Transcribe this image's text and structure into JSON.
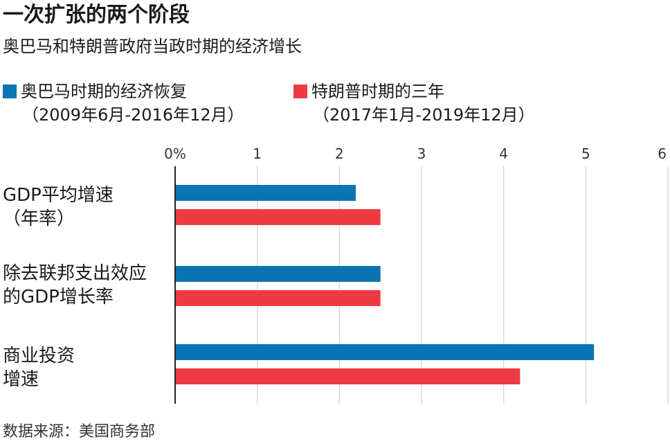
{
  "chart_data": {
    "type": "bar",
    "orientation": "horizontal",
    "title": "一次扩张的两个阶段",
    "subtitle": "奥巴马和特朗普政府当政时期的经济增长",
    "categories": [
      [
        "GDP平均增速",
        "（年率）"
      ],
      [
        "除去联邦支出效应",
        "的GDP增长率"
      ],
      [
        "商业投资",
        "增速"
      ]
    ],
    "series": [
      {
        "name": [
          "奥巴马时期的经济恢复",
          "（2009年6月-2016年12月）"
        ],
        "color": "#0a75b3",
        "values": [
          2.2,
          2.5,
          5.1
        ]
      },
      {
        "name": [
          "特朗普时期的三年",
          "（2017年1月-2019年12月）"
        ],
        "color": "#ee3a43",
        "values": [
          2.5,
          2.5,
          4.2
        ]
      }
    ],
    "xlim": [
      0,
      6
    ],
    "xticks": [
      "0%",
      "1",
      "2",
      "3",
      "4",
      "5",
      "6"
    ],
    "grid": true,
    "legend_position": "top",
    "source": "数据来源：美国商务部"
  }
}
